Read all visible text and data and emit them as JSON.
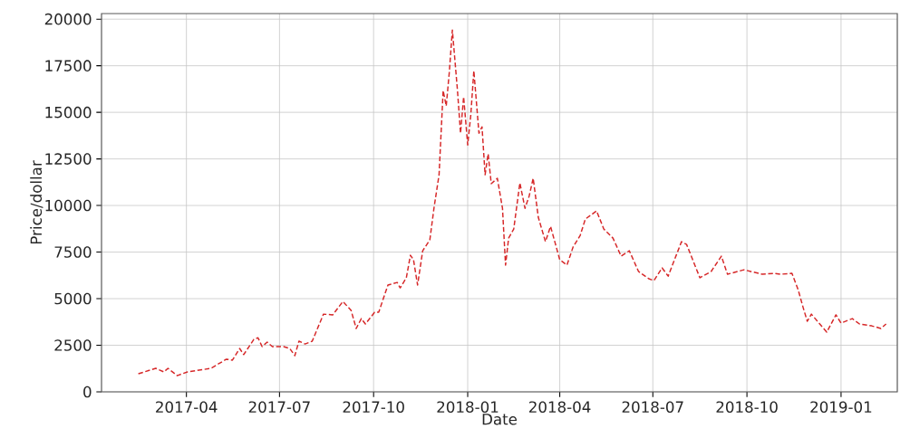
{
  "chart_data": {
    "type": "line",
    "xlabel": "Date",
    "ylabel": "Price/dollar",
    "xlim": [
      "2017-01-08",
      "2019-02-25"
    ],
    "ylim": [
      0,
      20300
    ],
    "xticks": [
      {
        "value": "2017-04-01",
        "label": "2017-04"
      },
      {
        "value": "2017-07-01",
        "label": "2017-07"
      },
      {
        "value": "2017-10-01",
        "label": "2017-10"
      },
      {
        "value": "2018-01-01",
        "label": "2018-01"
      },
      {
        "value": "2018-04-01",
        "label": "2018-04"
      },
      {
        "value": "2018-07-01",
        "label": "2018-07"
      },
      {
        "value": "2018-10-01",
        "label": "2018-10"
      },
      {
        "value": "2019-01-01",
        "label": "2019-01"
      }
    ],
    "yticks": [
      0,
      2500,
      5000,
      7500,
      10000,
      12500,
      15000,
      17500,
      20000
    ],
    "grid": true,
    "line_style": "dashed",
    "marker": "none",
    "series": [
      {
        "color": "#d62728",
        "x": [
          "2017-02-13",
          "2017-03-02",
          "2017-03-10",
          "2017-03-14",
          "2017-03-23",
          "2017-04-02",
          "2017-04-25",
          "2017-05-10",
          "2017-05-16",
          "2017-05-23",
          "2017-05-27",
          "2017-06-06",
          "2017-06-10",
          "2017-06-14",
          "2017-06-19",
          "2017-06-24",
          "2017-07-05",
          "2017-07-11",
          "2017-07-16",
          "2017-07-20",
          "2017-07-26",
          "2017-08-02",
          "2017-08-13",
          "2017-08-22",
          "2017-09-01",
          "2017-09-09",
          "2017-09-14",
          "2017-09-19",
          "2017-09-23",
          "2017-10-02",
          "2017-10-06",
          "2017-10-15",
          "2017-10-24",
          "2017-10-27",
          "2017-11-02",
          "2017-11-06",
          "2017-11-09",
          "2017-11-13",
          "2017-11-18",
          "2017-11-25",
          "2017-11-29",
          "2017-12-04",
          "2017-12-08",
          "2017-12-11",
          "2017-12-14",
          "2017-12-17",
          "2017-12-22",
          "2017-12-25",
          "2017-12-28",
          "2018-01-01",
          "2018-01-04",
          "2018-01-07",
          "2018-01-12",
          "2018-01-15",
          "2018-01-18",
          "2018-01-21",
          "2018-01-24",
          "2018-01-30",
          "2018-02-04",
          "2018-02-07",
          "2018-02-10",
          "2018-02-15",
          "2018-02-21",
          "2018-02-26",
          "2018-03-02",
          "2018-03-06",
          "2018-03-11",
          "2018-03-18",
          "2018-03-23",
          "2018-04-01",
          "2018-04-08",
          "2018-04-14",
          "2018-04-21",
          "2018-04-26",
          "2018-05-07",
          "2018-05-14",
          "2018-05-23",
          "2018-05-31",
          "2018-06-08",
          "2018-06-17",
          "2018-06-27",
          "2018-07-02",
          "2018-07-10",
          "2018-07-16",
          "2018-07-29",
          "2018-08-03",
          "2018-08-16",
          "2018-08-27",
          "2018-09-06",
          "2018-09-12",
          "2018-09-28",
          "2018-10-16",
          "2018-10-28",
          "2018-11-03",
          "2018-11-14",
          "2018-11-20",
          "2018-11-25",
          "2018-11-29",
          "2018-12-03",
          "2018-12-18",
          "2018-12-27",
          "2019-01-01",
          "2019-01-12",
          "2019-01-19",
          "2019-01-31",
          "2019-02-09",
          "2019-02-14"
        ],
        "values": [
          970,
          1260,
          1070,
          1260,
          870,
          1070,
          1260,
          1750,
          1700,
          2330,
          2000,
          2820,
          2900,
          2430,
          2670,
          2430,
          2430,
          2330,
          1940,
          2720,
          2570,
          2720,
          4170,
          4130,
          4850,
          4370,
          3400,
          3930,
          3640,
          4270,
          4270,
          5730,
          5870,
          5580,
          6120,
          7330,
          7090,
          5730,
          7570,
          8160,
          9850,
          11650,
          16170,
          15340,
          17140,
          19420,
          16170,
          13880,
          15830,
          13250,
          14850,
          17230,
          13880,
          14220,
          11650,
          12770,
          11170,
          11460,
          9850,
          6800,
          8250,
          8740,
          11210,
          9850,
          10490,
          11460,
          9370,
          8060,
          8880,
          7090,
          6800,
          7770,
          8400,
          9270,
          9710,
          8740,
          8250,
          7280,
          7570,
          6460,
          6070,
          5970,
          6650,
          6210,
          8060,
          7910,
          6120,
          6460,
          7280,
          6310,
          6550,
          6310,
          6360,
          6310,
          6360,
          5490,
          4510,
          3790,
          4170,
          3200,
          4130,
          3690,
          3930,
          3640,
          3540,
          3400,
          3640
        ]
      }
    ]
  }
}
